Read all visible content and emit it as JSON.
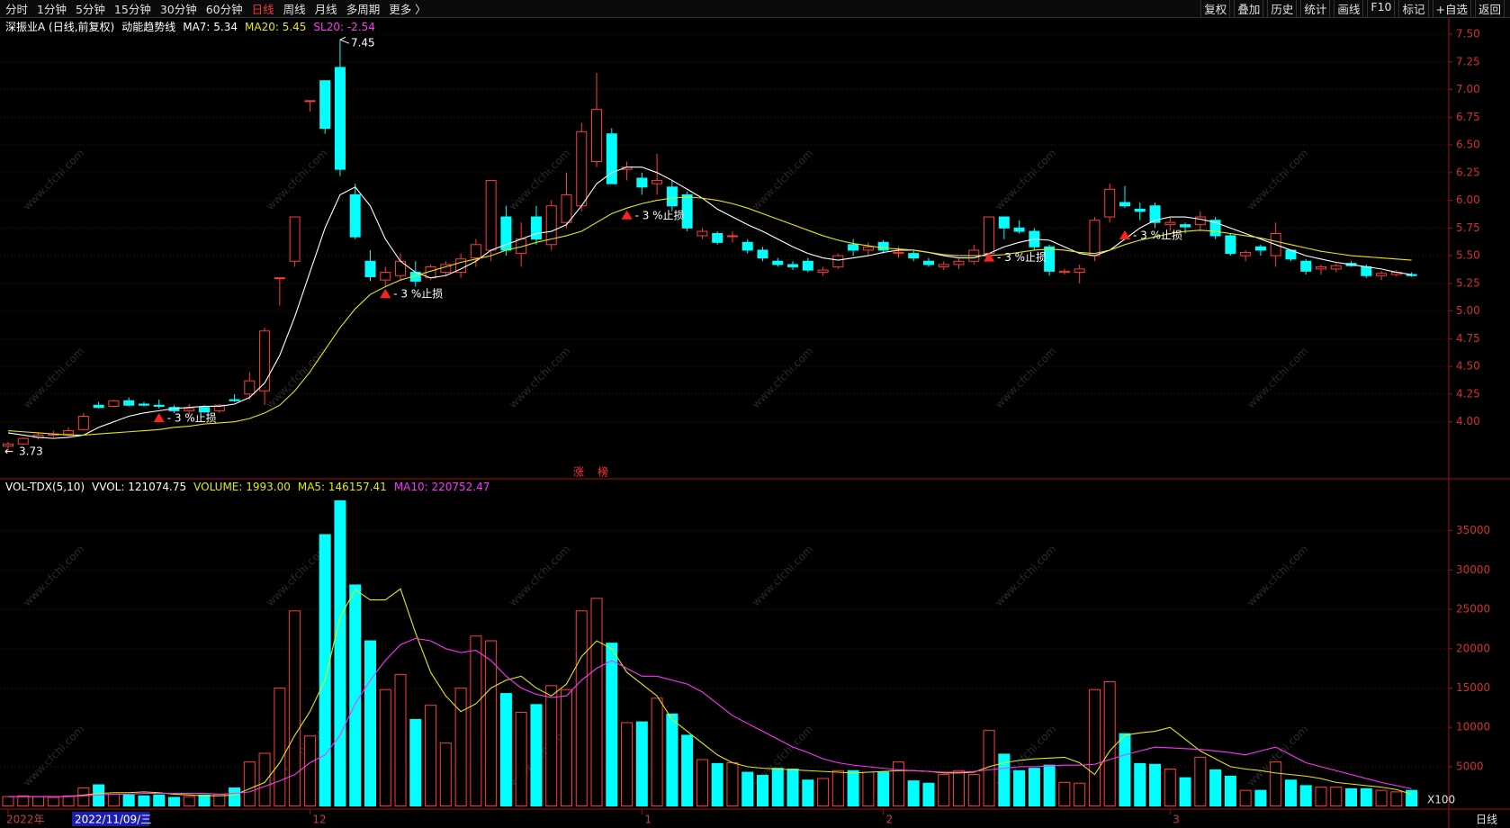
{
  "toolbar": {
    "periods": [
      "分时",
      "1分钟",
      "5分钟",
      "15分钟",
      "30分钟",
      "60分钟",
      "日线",
      "周线",
      "月线",
      "多周期",
      "更多 〉"
    ],
    "active_period": 6,
    "active_color": "#ff3232",
    "tools": [
      "复权",
      "叠加",
      "历史",
      "统计",
      "画线",
      "F10",
      "标记",
      "+自选",
      "返回"
    ]
  },
  "cursor_date": "2022/11/09/三",
  "period_label": "日线",
  "watermark": "www.cfchi.com",
  "chart_data": [
    {
      "type": "candlestick",
      "title": "深振业A (日线,前复权)",
      "indicator": "动能趋势线",
      "categories": [
        "2022年",
        null,
        null,
        null,
        null,
        null,
        null,
        null,
        null,
        null,
        null,
        null,
        null,
        null,
        null,
        null,
        null,
        null,
        null,
        null,
        "12",
        null,
        null,
        null,
        null,
        null,
        null,
        null,
        null,
        null,
        null,
        null,
        null,
        null,
        null,
        null,
        null,
        null,
        null,
        null,
        null,
        null,
        "1",
        null,
        null,
        null,
        null,
        null,
        null,
        null,
        null,
        null,
        null,
        null,
        null,
        null,
        null,
        null,
        "2",
        null,
        null,
        null,
        null,
        null,
        null,
        null,
        null,
        null,
        null,
        null,
        null,
        null,
        null,
        null,
        null,
        null,
        null,
        "3",
        null,
        null,
        null,
        null,
        null,
        null,
        null,
        null,
        null,
        null,
        null,
        null,
        null,
        null,
        null,
        null
      ],
      "open": [
        3.78,
        3.8,
        3.86,
        3.88,
        3.89,
        3.93,
        4.15,
        4.14,
        4.19,
        4.16,
        4.15,
        4.13,
        4.1,
        4.13,
        4.1,
        4.2,
        4.25,
        4.28,
        5.3,
        5.45,
        6.9,
        7.08,
        7.2,
        6.05,
        5.45,
        5.28,
        5.32,
        5.35,
        5.3,
        5.35,
        5.35,
        5.48,
        5.55,
        5.85,
        5.52,
        5.85,
        5.6,
        5.8,
        5.95,
        6.35,
        6.6,
        6.28,
        6.2,
        6.15,
        6.12,
        6.05,
        5.68,
        5.7,
        5.68,
        5.62,
        5.55,
        5.45,
        5.42,
        5.45,
        5.35,
        5.4,
        5.6,
        5.55,
        5.62,
        5.52,
        5.52,
        5.45,
        5.4,
        5.42,
        5.45,
        5.52,
        5.85,
        5.75,
        5.72,
        5.58,
        5.35,
        5.35,
        5.5,
        5.85,
        5.98,
        5.92,
        5.95,
        5.78,
        5.78,
        5.78,
        5.82,
        5.68,
        5.5,
        5.58,
        5.5,
        5.55,
        5.45,
        5.38,
        5.38,
        5.43,
        5.4,
        5.32,
        5.33,
        5.33
      ],
      "high": [
        3.82,
        3.86,
        3.9,
        3.92,
        3.95,
        4.08,
        4.18,
        4.2,
        4.22,
        4.18,
        4.2,
        4.15,
        4.16,
        4.15,
        4.16,
        4.25,
        4.45,
        4.85,
        5.3,
        5.85,
        6.9,
        7.08,
        7.45,
        6.15,
        5.55,
        5.4,
        5.52,
        5.45,
        5.42,
        5.45,
        5.52,
        5.65,
        6.18,
        5.95,
        5.8,
        5.95,
        6.0,
        6.25,
        6.7,
        7.15,
        6.65,
        6.35,
        6.25,
        6.42,
        6.18,
        6.08,
        5.75,
        5.72,
        5.72,
        5.65,
        5.58,
        5.48,
        5.45,
        5.48,
        5.4,
        5.52,
        5.65,
        5.62,
        5.64,
        5.58,
        5.55,
        5.48,
        5.45,
        5.48,
        5.6,
        5.85,
        5.85,
        5.82,
        5.75,
        5.6,
        5.38,
        5.42,
        5.85,
        6.15,
        6.13,
        5.98,
        5.98,
        5.85,
        5.8,
        5.9,
        5.85,
        5.7,
        5.55,
        5.6,
        5.8,
        5.55,
        5.47,
        5.42,
        5.43,
        5.45,
        5.42,
        5.36,
        5.37,
        5.35
      ],
      "low": [
        3.73,
        3.79,
        3.84,
        3.86,
        3.87,
        3.92,
        4.12,
        4.13,
        4.14,
        4.14,
        4.12,
        4.08,
        4.06,
        4.08,
        4.08,
        4.18,
        4.2,
        4.15,
        5.05,
        5.4,
        6.8,
        6.6,
        6.22,
        5.65,
        5.27,
        5.22,
        5.28,
        5.22,
        5.28,
        5.32,
        5.3,
        5.4,
        5.45,
        5.5,
        5.4,
        5.6,
        5.55,
        5.75,
        5.9,
        6.3,
        6.15,
        6.18,
        6.05,
        6.05,
        5.9,
        5.72,
        5.65,
        5.6,
        5.62,
        5.52,
        5.45,
        5.4,
        5.37,
        5.35,
        5.32,
        5.38,
        5.5,
        5.5,
        5.52,
        5.48,
        5.45,
        5.4,
        5.37,
        5.38,
        5.42,
        5.5,
        5.65,
        5.7,
        5.55,
        5.32,
        5.33,
        5.25,
        5.45,
        5.8,
        5.93,
        5.82,
        5.75,
        5.72,
        5.7,
        5.72,
        5.65,
        5.5,
        5.45,
        5.5,
        5.4,
        5.45,
        5.33,
        5.33,
        5.35,
        5.4,
        5.3,
        5.28,
        5.31,
        5.31
      ],
      "close": [
        3.8,
        3.85,
        3.88,
        3.89,
        3.92,
        4.05,
        4.13,
        4.19,
        4.15,
        4.15,
        4.14,
        4.1,
        4.12,
        4.09,
        4.15,
        4.19,
        4.37,
        4.82,
        5.3,
        5.85,
        6.9,
        6.65,
        6.28,
        5.67,
        5.31,
        5.35,
        5.45,
        5.27,
        5.4,
        5.42,
        5.47,
        5.6,
        6.18,
        5.55,
        5.65,
        5.65,
        5.95,
        6.05,
        6.62,
        6.82,
        6.15,
        6.3,
        6.12,
        6.18,
        5.95,
        5.75,
        5.72,
        5.62,
        5.68,
        5.55,
        5.48,
        5.42,
        5.4,
        5.37,
        5.37,
        5.5,
        5.55,
        5.58,
        5.55,
        5.53,
        5.48,
        5.42,
        5.42,
        5.45,
        5.55,
        5.85,
        5.75,
        5.72,
        5.58,
        5.36,
        5.36,
        5.38,
        5.82,
        6.1,
        5.95,
        5.9,
        5.8,
        5.8,
        5.76,
        5.85,
        5.68,
        5.52,
        5.53,
        5.55,
        5.7,
        5.47,
        5.36,
        5.4,
        5.41,
        5.41,
        5.32,
        5.34,
        5.35,
        5.32
      ],
      "up_color": "#ff3c3c",
      "down_color": "#00ffff",
      "series": [
        {
          "label": "MA7: 5.34",
          "color": "#ffffff",
          "values": [
            3.9,
            3.88,
            3.86,
            3.85,
            3.86,
            3.88,
            3.95,
            4.0,
            4.05,
            4.08,
            4.1,
            4.12,
            4.13,
            4.14,
            4.14,
            4.16,
            4.22,
            4.35,
            4.6,
            4.95,
            5.35,
            5.75,
            6.05,
            6.12,
            5.95,
            5.65,
            5.45,
            5.35,
            5.3,
            5.32,
            5.38,
            5.45,
            5.55,
            5.6,
            5.65,
            5.7,
            5.72,
            5.78,
            5.95,
            6.15,
            6.25,
            6.3,
            6.3,
            6.25,
            6.18,
            6.1,
            6.02,
            5.92,
            5.85,
            5.78,
            5.72,
            5.65,
            5.58,
            5.52,
            5.48,
            5.46,
            5.48,
            5.5,
            5.53,
            5.55,
            5.55,
            5.53,
            5.5,
            5.48,
            5.48,
            5.52,
            5.58,
            5.62,
            5.65,
            5.64,
            5.58,
            5.52,
            5.5,
            5.55,
            5.65,
            5.75,
            5.82,
            5.85,
            5.85,
            5.83,
            5.8,
            5.75,
            5.7,
            5.65,
            5.6,
            5.55,
            5.5,
            5.47,
            5.44,
            5.42,
            5.4,
            5.38,
            5.35,
            5.33
          ]
        },
        {
          "label": "MA20: 5.45",
          "color": "#e8e800",
          "values": [
            3.92,
            3.91,
            3.9,
            3.89,
            3.88,
            3.88,
            3.89,
            3.9,
            3.91,
            3.92,
            3.93,
            3.95,
            3.96,
            3.98,
            3.99,
            4.0,
            4.03,
            4.08,
            4.15,
            4.28,
            4.45,
            4.65,
            4.85,
            5.02,
            5.15,
            5.22,
            5.28,
            5.32,
            5.36,
            5.4,
            5.44,
            5.47,
            5.5,
            5.55,
            5.58,
            5.62,
            5.65,
            5.68,
            5.72,
            5.8,
            5.88,
            5.93,
            5.97,
            6.0,
            6.02,
            6.03,
            6.02,
            6.0,
            5.97,
            5.93,
            5.88,
            5.83,
            5.78,
            5.73,
            5.68,
            5.64,
            5.61,
            5.59,
            5.57,
            5.56,
            5.55,
            5.53,
            5.51,
            5.5,
            5.5,
            5.5,
            5.51,
            5.53,
            5.55,
            5.56,
            5.55,
            5.53,
            5.52,
            5.55,
            5.6,
            5.64,
            5.67,
            5.7,
            5.72,
            5.73,
            5.72,
            5.7,
            5.68,
            5.66,
            5.63,
            5.6,
            5.57,
            5.54,
            5.52,
            5.5,
            5.49,
            5.48,
            5.47,
            5.46
          ]
        }
      ],
      "extra_legend": {
        "label": "SL20: -2.54",
        "color": "#ff33ff"
      },
      "annotations": [
        {
          "at": 10,
          "value": 4.03,
          "label": "- 3 %止损"
        },
        {
          "at": 25,
          "value": 5.15,
          "label": "- 3 %止损"
        },
        {
          "at": 41,
          "value": 5.86,
          "label": "- 3 %止损"
        },
        {
          "at": 65,
          "value": 5.48,
          "label": "- 3 %止损"
        },
        {
          "at": 74,
          "value": 5.68,
          "label": "- 3 %止损"
        }
      ],
      "high_mark": {
        "at": 22,
        "value": 7.45
      },
      "low_mark": {
        "at": 0,
        "value": 3.73
      },
      "markers": [
        "涨",
        "榜"
      ],
      "ylim": [
        3.5,
        7.6
      ],
      "yticks": [
        {
          "value": 4,
          "label": "4.00"
        },
        {
          "value": 4.25,
          "label": "4.25"
        },
        {
          "value": 4.5,
          "label": "4.50"
        },
        {
          "value": 4.75,
          "label": "4.75"
        },
        {
          "value": 5,
          "label": "5.00"
        },
        {
          "value": 5.25,
          "label": "5.25"
        },
        {
          "value": 5.5,
          "label": "5.50"
        },
        {
          "value": 5.75,
          "label": "5.75"
        },
        {
          "value": 6,
          "label": "6.00"
        },
        {
          "value": 6.25,
          "label": "6.25"
        },
        {
          "value": 6.5,
          "label": "6.50"
        },
        {
          "value": 6.75,
          "label": "6.75"
        },
        {
          "value": 7,
          "label": "7.00"
        },
        {
          "value": 7.25,
          "label": "7.25"
        },
        {
          "value": 7.5,
          "label": "7.50"
        }
      ],
      "grid": true
    },
    {
      "type": "bar",
      "title": "VOL-TDX(5,10)",
      "legend": [
        {
          "label": "VVOL: 121074.75",
          "color": "#ffffff"
        },
        {
          "label": "VOLUME: 1993.00",
          "color": "#e8e800"
        }
      ],
      "values": [
        1200,
        1300,
        1200,
        1100,
        1300,
        2300,
        2700,
        1500,
        1400,
        1300,
        1400,
        1100,
        1200,
        1400,
        1500,
        2300,
        5600,
        6700,
        15000,
        24800,
        8900,
        34500,
        38800,
        28100,
        21000,
        14800,
        16700,
        11000,
        12800,
        8000,
        15000,
        21600,
        21000,
        14300,
        11900,
        12900,
        15300,
        14800,
        24800,
        26400,
        20700,
        10600,
        10700,
        13700,
        11700,
        9000,
        5900,
        5400,
        5500,
        4300,
        3900,
        4800,
        4700,
        3300,
        3500,
        4500,
        4500,
        4300,
        4300,
        5600,
        3200,
        2900,
        4000,
        4500,
        4000,
        9600,
        6600,
        4500,
        4800,
        5200,
        3000,
        2900,
        14800,
        15800,
        9200,
        5400,
        5300,
        4700,
        3600,
        6200,
        4600,
        3800,
        2000,
        2000,
        5600,
        3300,
        2600,
        2400,
        2400,
        2200,
        2200,
        2000,
        1800,
        1993
      ],
      "series": [
        {
          "label": "MA5: 146157.41",
          "color": "#e8e800",
          "values": [
            1200,
            1200,
            1200,
            1200,
            1200,
            1400,
            1600,
            1700,
            1700,
            1800,
            1700,
            1500,
            1400,
            1300,
            1300,
            1400,
            2200,
            3000,
            5500,
            9000,
            12000,
            16000,
            24000,
            27500,
            26200,
            26200,
            27600,
            22000,
            17000,
            14000,
            12000,
            13000,
            15000,
            16000,
            16500,
            15000,
            14000,
            15500,
            19000,
            21000,
            20000,
            17000,
            15500,
            14000,
            11000,
            9500,
            8000,
            6500,
            5500,
            5000,
            4800,
            4700,
            4600,
            4500,
            4400,
            4300,
            4200,
            4300,
            4400,
            4500,
            4500,
            4400,
            4200,
            4200,
            4300,
            5000,
            5500,
            5800,
            6000,
            6100,
            6200,
            5500,
            4000,
            7000,
            9000,
            9300,
            9500,
            10000,
            8500,
            7000,
            6000,
            5000,
            4700,
            4500,
            4200,
            4000,
            3800,
            3500,
            3000,
            2800,
            2600,
            2400,
            2100,
            1500
          ]
        },
        {
          "label": "MA10: 220752.47",
          "color": "#ff33ff",
          "values": [
            1200,
            1200,
            1200,
            1200,
            1200,
            1300,
            1400,
            1500,
            1500,
            1600,
            1600,
            1600,
            1600,
            1600,
            1500,
            1600,
            1800,
            2500,
            3200,
            4000,
            5500,
            6500,
            9000,
            13000,
            16000,
            18500,
            20500,
            21300,
            21000,
            20000,
            19500,
            19800,
            18500,
            16500,
            15000,
            14200,
            13800,
            14000,
            16000,
            17500,
            18500,
            17500,
            16500,
            16500,
            16000,
            15500,
            14500,
            13000,
            11500,
            10500,
            9500,
            8500,
            7500,
            6800,
            6000,
            5500,
            5200,
            5000,
            4800,
            4600,
            4500,
            4400,
            4300,
            4300,
            4400,
            4600,
            4800,
            5000,
            5000,
            5100,
            5200,
            5200,
            5300,
            5900,
            6500,
            7000,
            7500,
            7400,
            7300,
            7200,
            7000,
            6800,
            6500,
            7000,
            7500,
            6500,
            5500,
            5000,
            4500,
            4000,
            3500,
            3000,
            2600,
            2200
          ]
        }
      ],
      "unit_label": "X100",
      "ylim": [
        0,
        40000
      ],
      "yticks": [
        5000,
        10000,
        15000,
        20000,
        25000,
        30000,
        35000
      ],
      "grid": true
    }
  ]
}
